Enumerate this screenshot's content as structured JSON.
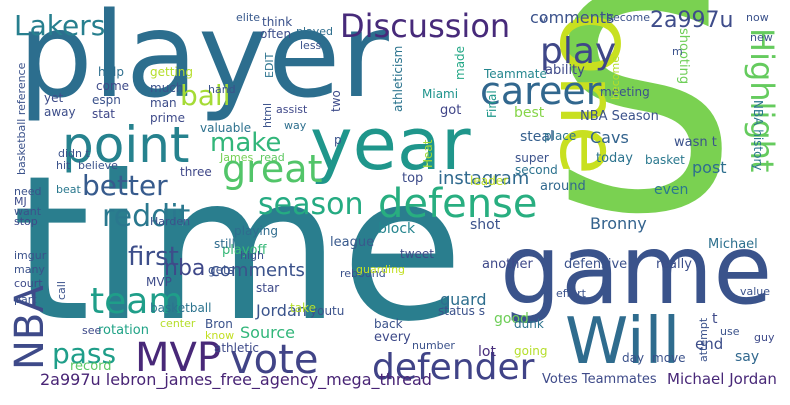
{
  "words": [
    {
      "text": "time",
      "color": "#2a7e8e"
    },
    {
      "text": "player",
      "color": "#2c6e8e"
    },
    {
      "text": "S",
      "color": "#7ad151"
    },
    {
      "text": "game",
      "color": "#3a538b"
    },
    {
      "text": "One",
      "color": "#c8e020"
    },
    {
      "text": "Will",
      "color": "#2f6c8e"
    },
    {
      "text": "year",
      "color": "#1f968b"
    },
    {
      "text": "point",
      "color": "#26828e"
    },
    {
      "text": "defense",
      "color": "#28ae80"
    },
    {
      "text": "defender",
      "color": "#404387"
    },
    {
      "text": "vote",
      "color": "#414487"
    },
    {
      "text": "MVP",
      "color": "#482878"
    },
    {
      "text": "career",
      "color": "#31678e"
    },
    {
      "text": "play",
      "color": "#3f4788"
    },
    {
      "text": "great",
      "color": "#52c569"
    },
    {
      "text": "Discussion",
      "color": "#472a7a"
    },
    {
      "text": "team",
      "color": "#1f9e89"
    },
    {
      "text": "Highlight",
      "color": "#65cb5e"
    },
    {
      "text": "season",
      "color": "#25ab82"
    },
    {
      "text": "NBA",
      "color": "#3e4a89"
    },
    {
      "text": "reddit",
      "color": "#2a788e"
    },
    {
      "text": "make",
      "color": "#32b67a"
    },
    {
      "text": "pass",
      "color": "#1f9e89"
    },
    {
      "text": "Lakers",
      "color": "#277f8e"
    },
    {
      "text": "first",
      "color": "#3d4e8a"
    },
    {
      "text": "better",
      "color": "#375b8d"
    },
    {
      "text": "ball",
      "color": "#a5db36"
    },
    {
      "text": "comments",
      "color": "#3b528b"
    },
    {
      "text": "nba",
      "color": "#3f4889"
    },
    {
      "text": "2a997u",
      "color": "#3e4c8a"
    },
    {
      "text": "comments",
      "color": "#3b528b"
    },
    {
      "text": "instagram",
      "color": "#30698e"
    },
    {
      "text": "Cavs",
      "color": "#33638d"
    },
    {
      "text": "Bronny",
      "color": "#33628d"
    },
    {
      "text": "Source",
      "color": "#32b67a"
    },
    {
      "text": "Jordan",
      "color": "#3a548c"
    },
    {
      "text": "2a997u lebron_james_free_agency_mega_thread",
      "color": "#482475"
    },
    {
      "text": "Michael Jordan",
      "color": "#482878"
    },
    {
      "text": "Votes Teammates",
      "color": "#3e4a89"
    },
    {
      "text": "NBA Season",
      "color": "#3b528b"
    },
    {
      "text": "guard",
      "color": "#2e6e8e"
    },
    {
      "text": "block",
      "color": "#25858e"
    },
    {
      "text": "shot",
      "color": "#3b528b"
    },
    {
      "text": "steal",
      "color": "#355f8d"
    },
    {
      "text": "post",
      "color": "#2e6f8e"
    },
    {
      "text": "end",
      "color": "#3d4e8a"
    },
    {
      "text": "good",
      "color": "#6ece58"
    },
    {
      "text": "say",
      "color": "#31688e"
    },
    {
      "text": "lot",
      "color": "#472d7b"
    },
    {
      "text": "record",
      "color": "#5cc863"
    },
    {
      "text": "playoff",
      "color": "#37b878"
    },
    {
      "text": "rotation",
      "color": "#20a386"
    },
    {
      "text": "league",
      "color": "#38598c"
    },
    {
      "text": "defensive",
      "color": "#3b528b"
    },
    {
      "text": "another",
      "color": "#3e4989"
    },
    {
      "text": "really",
      "color": "#3c4f8a"
    },
    {
      "text": "Michael",
      "color": "#2d708e"
    },
    {
      "text": "today",
      "color": "#2c738e"
    },
    {
      "text": "best",
      "color": "#86d549"
    },
    {
      "text": "even",
      "color": "#2a788e"
    },
    {
      "text": "top",
      "color": "#3e4c8a"
    },
    {
      "text": "got",
      "color": "#404588"
    },
    {
      "text": "Miami",
      "color": "#1f948c"
    },
    {
      "text": "Final",
      "color": "#1f988b"
    },
    {
      "text": "Teammate",
      "color": "#24868e"
    },
    {
      "text": "ability",
      "color": "#3e4989"
    },
    {
      "text": "made",
      "color": "#22a785"
    },
    {
      "text": "shooting",
      "color": "#6ece58"
    },
    {
      "text": "meeting",
      "color": "#3b528b"
    },
    {
      "text": "Heat",
      "color": "#a2da37"
    },
    {
      "text": "super",
      "color": "#3b528b"
    },
    {
      "text": "second",
      "color": "#2c728e"
    },
    {
      "text": "place",
      "color": "#2c728e"
    },
    {
      "text": "leader",
      "color": "#c0df25"
    },
    {
      "text": "NBA history",
      "color": "#2a768e"
    },
    {
      "text": "basket",
      "color": "#2a788e"
    },
    {
      "text": "wasn t",
      "color": "#3b528b"
    },
    {
      "text": "around",
      "color": "#31688e"
    },
    {
      "text": "athleticism",
      "color": "#2b748e"
    },
    {
      "text": "playing",
      "color": "#2f6c8e"
    },
    {
      "text": "three",
      "color": "#3f4788"
    },
    {
      "text": "James",
      "color": "#75d054"
    },
    {
      "text": "read",
      "color": "#5ec962"
    },
    {
      "text": "valuable",
      "color": "#2d718e"
    },
    {
      "text": "prime",
      "color": "#3e4a89"
    },
    {
      "text": "man",
      "color": "#3d4d8a"
    },
    {
      "text": "stat",
      "color": "#3f4788"
    },
    {
      "text": "espn",
      "color": "#3b528b"
    },
    {
      "text": "away",
      "color": "#3d4e8a"
    },
    {
      "text": "yet",
      "color": "#3e4c8a"
    },
    {
      "text": "come",
      "color": "#3e4a89"
    },
    {
      "text": "help",
      "color": "#2e6f8e"
    },
    {
      "text": "getting",
      "color": "#b5de2b"
    },
    {
      "text": "hand",
      "color": "#3b528b"
    },
    {
      "text": "elite",
      "color": "#38598c"
    },
    {
      "text": "think",
      "color": "#3b528b"
    },
    {
      "text": "played",
      "color": "#2e6e8e"
    },
    {
      "text": "often",
      "color": "#3d4e8a"
    },
    {
      "text": "less",
      "color": "#3b528b"
    },
    {
      "text": "much",
      "color": "#3b528b"
    },
    {
      "text": "EDIT",
      "color": "#2c738e"
    },
    {
      "text": "html",
      "color": "#3b528b"
    },
    {
      "text": "assist",
      "color": "#3f4889"
    },
    {
      "text": "way",
      "color": "#2e6f8e"
    },
    {
      "text": "two",
      "color": "#3e4c8a"
    },
    {
      "text": "p",
      "color": "#3b528b"
    },
    {
      "text": "Harden",
      "color": "#3b528b"
    },
    {
      "text": "still",
      "color": "#2f6c8e"
    },
    {
      "text": "high",
      "color": "#3b528b"
    },
    {
      "text": "gets",
      "color": "#3b528b"
    },
    {
      "text": "star",
      "color": "#3e4a89"
    },
    {
      "text": "Bron",
      "color": "#3b528b"
    },
    {
      "text": "know",
      "color": "#c2df23"
    },
    {
      "text": "athletic",
      "color": "#3e4a89"
    },
    {
      "text": "basketball",
      "color": "#2c738e"
    },
    {
      "text": "center",
      "color": "#b5de2b"
    },
    {
      "text": "MVP",
      "color": "#3e4c8a"
    },
    {
      "text": "imgur",
      "color": "#3b528b"
    },
    {
      "text": "many",
      "color": "#3b528b"
    },
    {
      "text": "court",
      "color": "#3e4a89"
    },
    {
      "text": "part",
      "color": "#3b528b"
    },
    {
      "text": "call",
      "color": "#3b528b"
    },
    {
      "text": "see",
      "color": "#3e4a89"
    },
    {
      "text": "need",
      "color": "#3b528b"
    },
    {
      "text": "beat",
      "color": "#2a788e"
    },
    {
      "text": "MJ",
      "color": "#3e4c8a"
    },
    {
      "text": "want",
      "color": "#3b528b"
    },
    {
      "text": "stop",
      "color": "#3e4a89"
    },
    {
      "text": "hit",
      "color": "#3b528b"
    },
    {
      "text": "believe",
      "color": "#3b528b"
    },
    {
      "text": "didn t",
      "color": "#3b528b"
    },
    {
      "text": "basketball reference",
      "color": "#3b528b"
    },
    {
      "text": "youtu",
      "color": "#3b528b"
    },
    {
      "text": "take",
      "color": "#b5de2b"
    },
    {
      "text": "rebound",
      "color": "#3b528b"
    },
    {
      "text": "guarding",
      "color": "#c2df23"
    },
    {
      "text": "tweet",
      "color": "#3e4a89"
    },
    {
      "text": "status s",
      "color": "#3b528b"
    },
    {
      "text": "back",
      "color": "#3b528b"
    },
    {
      "text": "every",
      "color": "#3e4a89"
    },
    {
      "text": "number",
      "color": "#3b528b"
    },
    {
      "text": "going",
      "color": "#b5de2b"
    },
    {
      "text": "dunk",
      "color": "#2c738e"
    },
    {
      "text": "effort",
      "color": "#3b528b"
    },
    {
      "text": "t",
      "color": "#3e4a89"
    },
    {
      "text": "day",
      "color": "#3b528b"
    },
    {
      "text": "move",
      "color": "#3b528b"
    },
    {
      "text": "attempt",
      "color": "#3b528b"
    },
    {
      "text": "use",
      "color": "#3b528b"
    },
    {
      "text": "guy",
      "color": "#3e4a89"
    },
    {
      "text": "value",
      "color": "#3b528b"
    },
    {
      "text": "now",
      "color": "#3b528b"
    },
    {
      "text": "new",
      "color": "#3b528b"
    },
    {
      "text": "become",
      "color": "#b5de2b"
    },
    {
      "text": "v",
      "color": "#3b528b"
    },
    {
      "text": "m",
      "color": "#3b528b"
    },
    {
      "text": "become",
      "color": "#3b528b"
    }
  ]
}
